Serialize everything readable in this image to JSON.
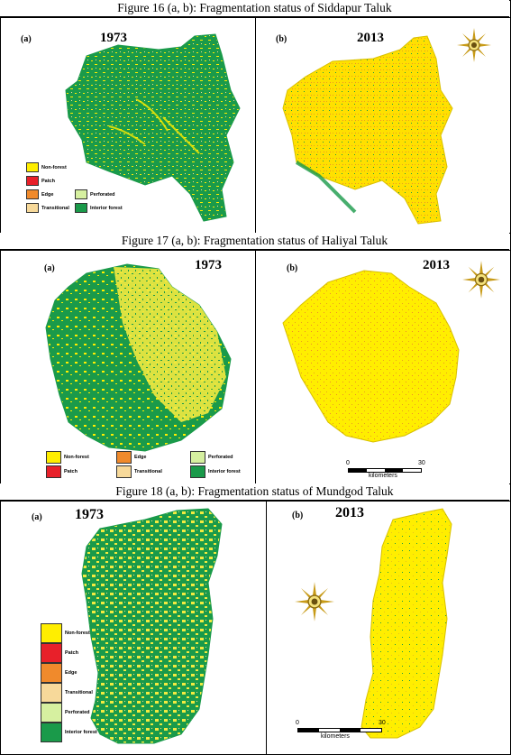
{
  "figures": [
    {
      "caption": "Figure 16 (a, b): Fragmentation status of Siddapur Taluk",
      "left_label": "(a)",
      "left_year": "1973",
      "right_label": "(b)",
      "right_year": "2013",
      "legend": {
        "non_forest": "Non-forest",
        "patch": "Patch",
        "edge": "Edge",
        "transitional": "Transitional",
        "perforated": "Perforated",
        "interior": "Interior forest"
      }
    },
    {
      "caption": "Figure 17 (a, b): Fragmentation status of Haliyal Taluk",
      "left_label": "(a)",
      "left_year": "1973",
      "right_label": "(b)",
      "right_year": "2013",
      "legend": {
        "non_forest": "Non-forest",
        "patch": "Patch",
        "edge": "Edge",
        "transitional": "Transitional",
        "perforated": "Perforated",
        "interior": "Interior forest"
      },
      "scale": {
        "zero": "0",
        "max": "30",
        "unit": "kilometers"
      }
    },
    {
      "caption": "Figure 18 (a, b): Fragmentation status of Mundgod Taluk",
      "left_label": "(a)",
      "left_year": "1973",
      "right_label": "(b)",
      "right_year": "2013",
      "legend": {
        "non_forest": "Non-forest",
        "patch": "Patch",
        "edge": "Edge",
        "transitional": "Transitional",
        "perforated": "Perforated",
        "interior": "Interior forest"
      },
      "scale": {
        "zero": "0",
        "max": "30",
        "unit": "kilometers"
      }
    }
  ],
  "colors": {
    "non_forest": "#ffee00",
    "patch": "#e8202a",
    "edge": "#f08a2c",
    "transitional": "#f7d99a",
    "perforated": "#d6f0a0",
    "interior": "#1a9a4a"
  },
  "icons": [
    "north-arrow-compass-icon"
  ]
}
